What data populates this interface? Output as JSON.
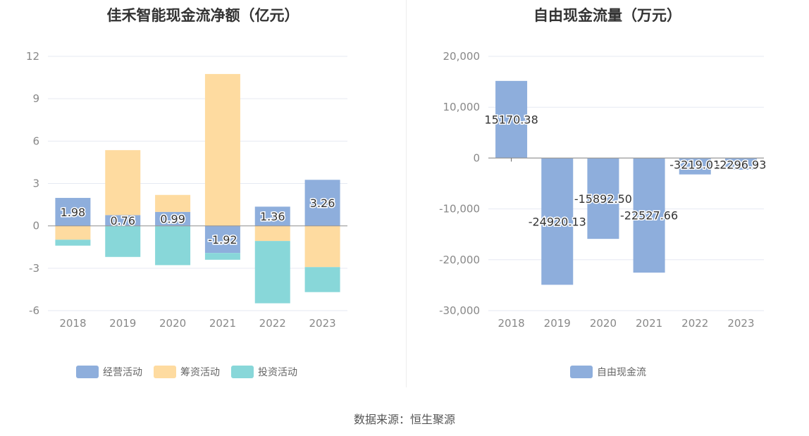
{
  "colors": {
    "operating": "#8eaedc",
    "financing": "#fedba0",
    "investing": "#88d7d9",
    "fcf": "#8eaedc",
    "grid": "#e6e9f2",
    "axis_text": "#888888"
  },
  "source_text": "数据来源：恒生聚源",
  "chart_data": [
    {
      "type": "bar",
      "stacked": true,
      "title": "佳禾智能现金流净额（亿元）",
      "categories": [
        "2018",
        "2019",
        "2020",
        "2021",
        "2022",
        "2023"
      ],
      "ylim": [
        -6,
        12
      ],
      "yticks": [
        12,
        9,
        6,
        3,
        0,
        -3,
        -6
      ],
      "ytick_labels": [
        "12",
        "9",
        "6",
        "3",
        "0",
        "-3",
        "-6"
      ],
      "grid": true,
      "legend_position": "bottom",
      "series": [
        {
          "name": "经营活动",
          "color_key": "operating",
          "values": [
            1.98,
            0.76,
            0.99,
            -1.92,
            1.36,
            3.26
          ],
          "labels": [
            "1.98",
            "0.76",
            "0.99",
            "-1.92",
            "1.36",
            "3.26"
          ]
        },
        {
          "name": "筹资活动",
          "color_key": "financing",
          "values": [
            -0.98,
            4.6,
            1.2,
            10.75,
            -1.07,
            -2.92
          ]
        },
        {
          "name": "投资活动",
          "color_key": "investing",
          "values": [
            -0.42,
            -2.2,
            -2.78,
            -0.48,
            -4.41,
            -1.77
          ]
        }
      ]
    },
    {
      "type": "bar",
      "title": "自由现金流量（万元）",
      "categories": [
        "2018",
        "2019",
        "2020",
        "2021",
        "2022",
        "2023"
      ],
      "ylim": [
        -30000,
        20000
      ],
      "yticks": [
        20000,
        10000,
        0,
        -10000,
        -20000,
        -30000
      ],
      "ytick_labels": [
        "20,000",
        "10,000",
        "0",
        "-10,000",
        "-20,000",
        "-30,000"
      ],
      "grid": true,
      "legend_position": "bottom",
      "series": [
        {
          "name": "自由现金流",
          "color_key": "fcf",
          "values": [
            15170.38,
            -24920.13,
            -15892.5,
            -22527.66,
            -3219.01,
            -2296.93
          ],
          "labels": [
            "15170.38",
            "-24920.13",
            "-15892.50",
            "-22527.66",
            "-3219.01",
            "-2296.93"
          ]
        }
      ]
    }
  ]
}
